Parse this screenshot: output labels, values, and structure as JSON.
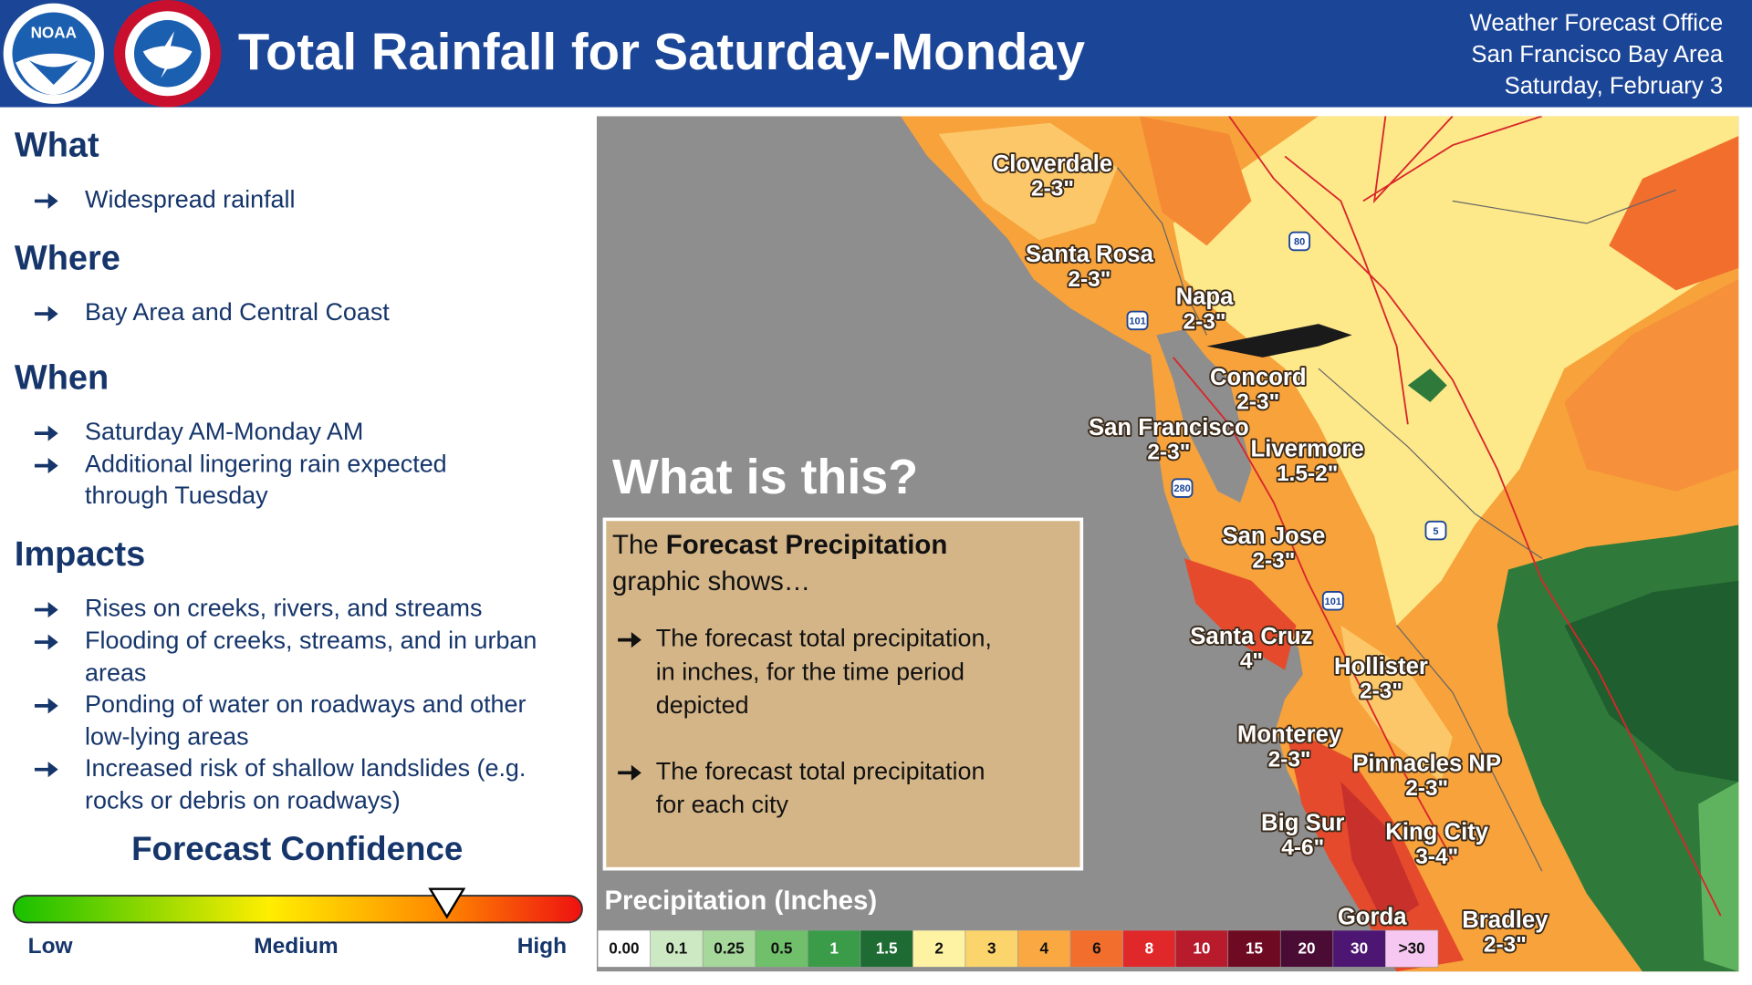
{
  "header": {
    "title": "Total Rainfall for Saturday-Monday",
    "logo": "NOAA",
    "office": [
      "Weather Forecast Office",
      "San Francisco Bay Area",
      "Saturday, February 3"
    ]
  },
  "sections": [
    {
      "heading": "What",
      "bullets": [
        [
          "Widespread rainfall"
        ]
      ]
    },
    {
      "heading": "Where",
      "bullets": [
        [
          "Bay Area and Central Coast"
        ]
      ]
    },
    {
      "heading": "When",
      "bullets": [
        [
          "Saturday AM-Monday AM"
        ],
        [
          "Additional lingering rain expected",
          "through Tuesday"
        ]
      ]
    },
    {
      "heading": "Impacts",
      "bullets": [
        [
          "Rises on creeks, rivers, and streams"
        ],
        [
          "Flooding of creeks, streams, and in urban",
          "areas"
        ],
        [
          "Ponding of water on roadways and other",
          "low-lying areas"
        ],
        [
          "Increased risk of shallow landslides (e.g.",
          "rocks or debris on roadways)"
        ]
      ]
    }
  ],
  "confidence": {
    "title": "Forecast Confidence",
    "labels": [
      "Low",
      "Medium",
      "High"
    ]
  },
  "map": {
    "question": "What is this?",
    "box": {
      "intro_plain": "The ",
      "intro_bold": "Forecast Precipitation",
      "intro_rest": "graphic shows…",
      "bullets": [
        [
          "The forecast total precipitation,",
          "in inches, for the time period",
          "depicted"
        ],
        [
          "The forecast total precipitation",
          "for each city"
        ]
      ]
    },
    "legend": {
      "title": "Precipitation (Inches)",
      "bins": [
        {
          "label": "0.00",
          "color": "#ffffff"
        },
        {
          "label": "0.1",
          "color": "#cde9c4"
        },
        {
          "label": "0.25",
          "color": "#a6d89c"
        },
        {
          "label": "0.5",
          "color": "#6fbf6b"
        },
        {
          "label": "1",
          "color": "#3a9c49"
        },
        {
          "label": "1.5",
          "color": "#1e6c33"
        },
        {
          "label": "2",
          "color": "#fdf3a2"
        },
        {
          "label": "3",
          "color": "#fcd46c"
        },
        {
          "label": "4",
          "color": "#f9a842"
        },
        {
          "label": "6",
          "color": "#f26e2d"
        },
        {
          "label": "8",
          "color": "#e0282b"
        },
        {
          "label": "10",
          "color": "#b81b2b"
        },
        {
          "label": "15",
          "color": "#6e0b23"
        },
        {
          "label": "20",
          "color": "#4a0b34"
        },
        {
          "label": "30",
          "color": "#4c1672"
        },
        {
          "label": ">30",
          "color": "#f6c7f0"
        }
      ]
    },
    "cities": [
      {
        "name": "Cloverdale",
        "amount": "2-3\""
      },
      {
        "name": "Santa Rosa",
        "amount": "2-3\""
      },
      {
        "name": "Napa",
        "amount": "2-3\""
      },
      {
        "name": "Concord",
        "amount": "2-3\""
      },
      {
        "name": "San Francisco",
        "amount": "2-3\""
      },
      {
        "name": "Livermore",
        "amount": "1.5-2\""
      },
      {
        "name": "San Jose",
        "amount": "2-3\""
      },
      {
        "name": "Santa Cruz",
        "amount": "4\""
      },
      {
        "name": "Hollister",
        "amount": "2-3\""
      },
      {
        "name": "Monterey",
        "amount": "2-3\""
      },
      {
        "name": "Pinnacles NP",
        "amount": "2-3\""
      },
      {
        "name": "Big Sur",
        "amount": "4-6\""
      },
      {
        "name": "King City",
        "amount": "3-4\""
      },
      {
        "name": "Gorda"
      },
      {
        "name": "Bradley",
        "amount": "2-3\""
      }
    ],
    "shields": [
      "80",
      "101",
      "280",
      "5",
      "101"
    ]
  }
}
